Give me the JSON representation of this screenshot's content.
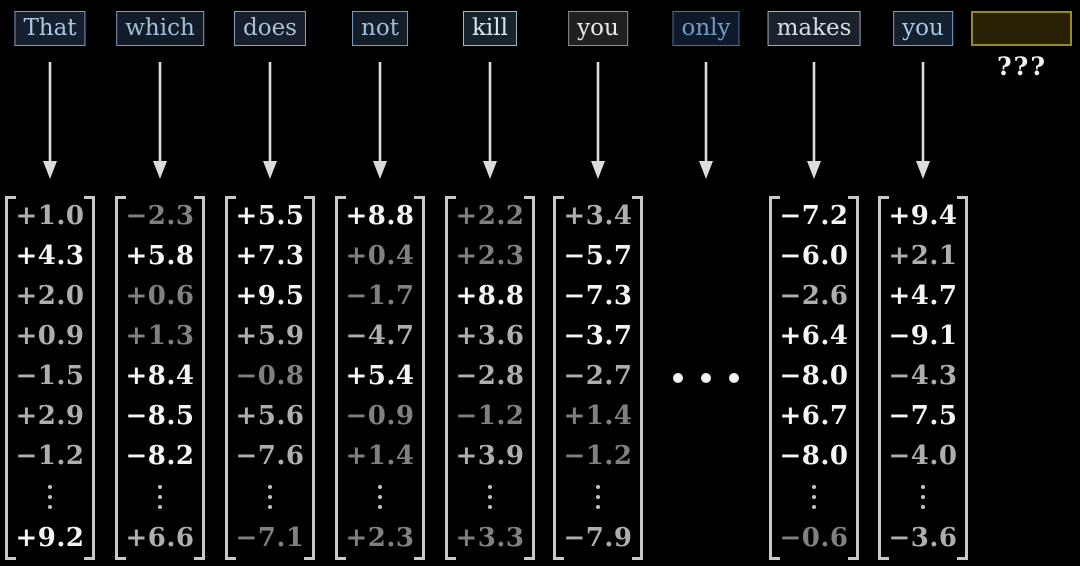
{
  "tokens": [
    {
      "label": "That",
      "border": "#7d9cc2",
      "bg": "#151f2d",
      "color": "#a9c6e2"
    },
    {
      "label": "which",
      "border": "#7d9cc2",
      "bg": "#121c28",
      "color": "#9fc0dc"
    },
    {
      "label": "does",
      "border": "#8ba1bb",
      "bg": "#161f2b",
      "color": "#a8c0d8"
    },
    {
      "label": "not",
      "border": "#7d9cc2",
      "bg": "#131d29",
      "color": "#a0bedd"
    },
    {
      "label": "kill",
      "border": "#a2bcc6",
      "bg": "#17232a",
      "color": "#d8e6ec"
    },
    {
      "label": "you",
      "border": "#909090",
      "bg": "#202020",
      "color": "#e8e8e8"
    },
    {
      "label": "only",
      "border": "#47739f",
      "bg": "#0e1a29",
      "color": "#6f9dc9"
    },
    {
      "label": "makes",
      "border": "#9fabb9",
      "bg": "#1b212b",
      "color": "#d4dee8"
    },
    {
      "label": "you",
      "border": "#7aa2c8",
      "bg": "#14202e",
      "color": "#a6c8e6"
    }
  ],
  "unknown_token": {
    "question_label": "???",
    "border": "#9a8a1e",
    "bg": "#282105"
  },
  "vectors": [
    {
      "token": "That",
      "values": [
        "+1.0",
        "+4.3",
        "+2.0",
        "+0.9",
        "−1.5",
        "+2.9",
        "−1.2",
        "+9.2"
      ],
      "levels": [
        "m",
        "b",
        "m",
        "m",
        "m",
        "m",
        "m",
        "b"
      ]
    },
    {
      "token": "which",
      "values": [
        "−2.3",
        "+5.8",
        "+0.6",
        "+1.3",
        "+8.4",
        "−8.5",
        "−8.2",
        "+6.6"
      ],
      "levels": [
        "d",
        "b",
        "d",
        "d",
        "b",
        "b",
        "b",
        "m"
      ]
    },
    {
      "token": "does",
      "values": [
        "+5.5",
        "+7.3",
        "+9.5",
        "+5.9",
        "−0.8",
        "+5.6",
        "−7.6",
        "−7.1"
      ],
      "levels": [
        "b",
        "b",
        "b",
        "m",
        "d",
        "m",
        "m",
        "d"
      ]
    },
    {
      "token": "not",
      "values": [
        "+8.8",
        "+0.4",
        "−1.7",
        "−4.7",
        "+5.4",
        "−0.9",
        "+1.4",
        "+2.3"
      ],
      "levels": [
        "b",
        "d",
        "d",
        "m",
        "b",
        "d",
        "d",
        "d"
      ]
    },
    {
      "token": "kill",
      "values": [
        "+2.2",
        "+2.3",
        "+8.8",
        "+3.6",
        "−2.8",
        "−1.2",
        "+3.9",
        "+3.3"
      ],
      "levels": [
        "d",
        "d",
        "b",
        "m",
        "m",
        "d",
        "m",
        "d"
      ]
    },
    {
      "token": "you",
      "values": [
        "+3.4",
        "−5.7",
        "−7.3",
        "−3.7",
        "−2.7",
        "+1.4",
        "−1.2",
        "−7.9"
      ],
      "levels": [
        "m",
        "b",
        "b",
        "b",
        "m",
        "d",
        "d",
        "m"
      ]
    },
    {
      "token": "makes",
      "values": [
        "−7.2",
        "−6.0",
        "−2.6",
        "+6.4",
        "−8.0",
        "+6.7",
        "−8.0",
        "−0.6"
      ],
      "levels": [
        "b",
        "b",
        "m",
        "b",
        "b",
        "b",
        "b",
        "d"
      ]
    },
    {
      "token": "you",
      "values": [
        "+9.4",
        "+2.1",
        "+4.7",
        "−9.1",
        "−4.3",
        "−7.5",
        "−4.0",
        "−3.6"
      ],
      "levels": [
        "b",
        "m",
        "b",
        "b",
        "m",
        "b",
        "m",
        "m"
      ]
    }
  ],
  "icons": {
    "down_arrow": "↓",
    "vertical_ellipsis": "⋮",
    "horizontal_ellipsis": "• • •"
  },
  "colors": {
    "background": "#000000",
    "bracket": "#c9c9c9",
    "arrow": "#dcdcdc",
    "value_bright": "#f4f4f4",
    "value_medium": "#aeaeae",
    "value_dim": "#808080"
  }
}
